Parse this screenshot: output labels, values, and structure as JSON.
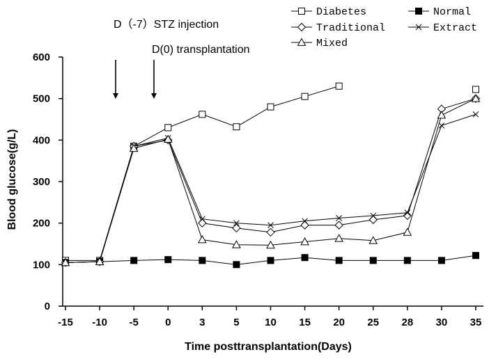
{
  "chart_data": {
    "type": "line",
    "title": "",
    "xlabel": "Time posttransplantation(Days)",
    "ylabel": "Blood glucose(g/L)",
    "ylim": [
      0,
      600
    ],
    "yticks": [
      0,
      100,
      200,
      300,
      400,
      500,
      600
    ],
    "categories": [
      "-15",
      "-10",
      "-5",
      "0",
      "3",
      "5",
      "10",
      "15",
      "20",
      "25",
      "28",
      "30",
      "35"
    ],
    "series": [
      {
        "name": "Diabetes",
        "marker": "square-open",
        "values": [
          110,
          110,
          385,
          430,
          462,
          432,
          480,
          505,
          530,
          null,
          null,
          null,
          522
        ]
      },
      {
        "name": "Normal",
        "marker": "square-filled",
        "values": [
          105,
          107,
          110,
          112,
          110,
          100,
          110,
          117,
          110,
          110,
          110,
          110,
          122
        ]
      },
      {
        "name": "Traditional",
        "marker": "diamond-open",
        "values": [
          105,
          107,
          385,
          400,
          200,
          188,
          178,
          195,
          195,
          208,
          218,
          475,
          500
        ]
      },
      {
        "name": "Extract",
        "marker": "x",
        "values": [
          105,
          107,
          385,
          405,
          210,
          200,
          195,
          205,
          212,
          218,
          225,
          435,
          462
        ]
      },
      {
        "name": "Mixed",
        "marker": "triangle-open",
        "values": [
          105,
          107,
          380,
          402,
          160,
          148,
          147,
          155,
          163,
          158,
          178,
          460,
          500
        ]
      }
    ],
    "legend_position": "top-right",
    "annotations": [
      {
        "text": "D（-7）STZ injection",
        "arrow_at_x": "-5"
      },
      {
        "text": "D(0) transplantation",
        "arrow_at_x": "0"
      }
    ],
    "grid": false
  }
}
